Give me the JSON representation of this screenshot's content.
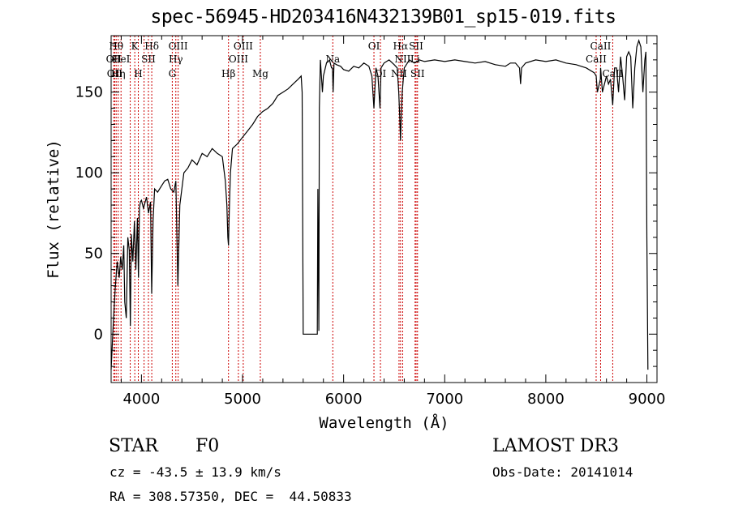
{
  "title": "spec-56945-HD203416N432139B01_sp15-019.fits",
  "info": {
    "class_label": "STAR",
    "subclass": "F0",
    "survey": "LAMOST DR3",
    "cz": "cz = -43.5 ± 13.9 km/s",
    "obs_date": "Obs-Date: 20141014",
    "radec": "RA = 308.57350, DEC =  44.50833"
  },
  "chart_data": {
    "type": "line",
    "title": "spec-56945-HD203416N432139B01_sp15-019.fits",
    "xlabel": "Wavelength (Å)",
    "ylabel": "Flux (relative)",
    "xlim": [
      3700,
      9100
    ],
    "ylim": [
      -30,
      185
    ],
    "xticks": [
      4000,
      5000,
      6000,
      7000,
      8000,
      9000
    ],
    "yticks": [
      0,
      50,
      100,
      150
    ],
    "grid": false,
    "line_color": "#000000",
    "marker_color": "#cc0000",
    "series": [
      {
        "x": [
          3700,
          3720,
          3740,
          3760,
          3780,
          3795,
          3810,
          3825,
          3835,
          3850,
          3865,
          3880,
          3890,
          3900,
          3915,
          3930,
          3945,
          3960,
          3970,
          3980,
          3990,
          4000,
          4020,
          4050,
          4070,
          4090,
          4101,
          4115,
          4130,
          4160,
          4200,
          4230,
          4260,
          4290,
          4320,
          4340,
          4360,
          4380,
          4420,
          4460,
          4500,
          4550,
          4600,
          4650,
          4700,
          4750,
          4800,
          4830,
          4845,
          4855,
          4861,
          4868,
          4880,
          4900,
          4950,
          5000,
          5050,
          5100,
          5150,
          5200,
          5250,
          5300,
          5350,
          5400,
          5450,
          5500,
          5550,
          5580,
          5590,
          5600,
          5650,
          5700,
          5730,
          5740,
          5745,
          5755,
          5760,
          5770,
          5790,
          5800,
          5830,
          5860,
          5880,
          5890,
          5896,
          5905,
          5930,
          5970,
          6000,
          6050,
          6100,
          6150,
          6200,
          6250,
          6280,
          6300,
          6320,
          6340,
          6360,
          6370,
          6400,
          6450,
          6500,
          6530,
          6545,
          6555,
          6563,
          6570,
          6580,
          6600,
          6650,
          6700,
          6750,
          6800,
          6900,
          7000,
          7100,
          7200,
          7300,
          7400,
          7500,
          7600,
          7650,
          7700,
          7740,
          7750,
          7760,
          7800,
          7900,
          8000,
          8100,
          8200,
          8300,
          8400,
          8480,
          8498,
          8510,
          8540,
          8542,
          8560,
          8600,
          8620,
          8640,
          8662,
          8680,
          8700,
          8720,
          8740,
          8760,
          8780,
          8800,
          8820,
          8840,
          8860,
          8880,
          8900,
          8920,
          8940,
          8960,
          8980,
          8990,
          9000,
          9010
        ],
        "y": [
          -22,
          5,
          28,
          45,
          35,
          48,
          40,
          55,
          20,
          10,
          60,
          52,
          5,
          62,
          45,
          70,
          40,
          72,
          35,
          78,
          82,
          83,
          78,
          85,
          75,
          82,
          25,
          70,
          90,
          88,
          92,
          95,
          96,
          90,
          88,
          95,
          30,
          80,
          100,
          103,
          108,
          105,
          112,
          110,
          115,
          112,
          110,
          95,
          80,
          60,
          55,
          75,
          100,
          115,
          118,
          122,
          126,
          130,
          135,
          138,
          140,
          143,
          148,
          150,
          152,
          155,
          158,
          160,
          150,
          0,
          0,
          0,
          0,
          0,
          90,
          2,
          140,
          170,
          150,
          160,
          168,
          170,
          165,
          165,
          150,
          168,
          167,
          166,
          164,
          163,
          166,
          165,
          168,
          166,
          160,
          140,
          165,
          160,
          140,
          165,
          168,
          170,
          167,
          165,
          150,
          135,
          120,
          135,
          150,
          165,
          170,
          168,
          170,
          169,
          170,
          169,
          170,
          169,
          168,
          169,
          167,
          166,
          168,
          168,
          165,
          155,
          165,
          168,
          170,
          169,
          170,
          168,
          167,
          165,
          162,
          160,
          150,
          158,
          165,
          150,
          160,
          155,
          158,
          142,
          165,
          165,
          150,
          172,
          160,
          145,
          172,
          175,
          172,
          140,
          165,
          178,
          182,
          178,
          150,
          170,
          175,
          60,
          -22
        ]
      }
    ],
    "line_markers": [
      {
        "x": 3726,
        "label": "OII",
        "row": 2
      },
      {
        "x": 3735,
        "label": "OII",
        "row": 3
      },
      {
        "x": 3750,
        "label": "Hθ",
        "row": 1
      },
      {
        "x": 3770,
        "label": "Hη",
        "row": 3
      },
      {
        "x": 3798,
        "label": "HeI",
        "row": 2
      },
      {
        "x": 3889,
        "label": "",
        "row": 0
      },
      {
        "x": 3934,
        "label": "K",
        "row": 1
      },
      {
        "x": 3969,
        "label": "H",
        "row": 3
      },
      {
        "x": 4026,
        "label": "",
        "row": 0
      },
      {
        "x": 4069,
        "label": "SII",
        "row": 2
      },
      {
        "x": 4102,
        "label": "Hδ",
        "row": 1
      },
      {
        "x": 4305,
        "label": "G",
        "row": 3
      },
      {
        "x": 4340,
        "label": "Hγ",
        "row": 2
      },
      {
        "x": 4363,
        "label": "OIII",
        "row": 1
      },
      {
        "x": 4861,
        "label": "Hβ",
        "row": 3
      },
      {
        "x": 4959,
        "label": "OIII",
        "row": 2
      },
      {
        "x": 5007,
        "label": "OIII",
        "row": 1
      },
      {
        "x": 5176,
        "label": "Mg",
        "row": 3
      },
      {
        "x": 5893,
        "label": "Na",
        "row": 2
      },
      {
        "x": 6300,
        "label": "OI",
        "row": 1
      },
      {
        "x": 6364,
        "label": "OI",
        "row": 3
      },
      {
        "x": 6548,
        "label": "NII",
        "row": 3
      },
      {
        "x": 6563,
        "label": "Hα",
        "row": 1
      },
      {
        "x": 6584,
        "label": "NII",
        "row": 2
      },
      {
        "x": 6707,
        "label": "Li",
        "row": 2
      },
      {
        "x": 6717,
        "label": "SII",
        "row": 1
      },
      {
        "x": 6731,
        "label": "SII",
        "row": 3
      },
      {
        "x": 8498,
        "label": "CaII",
        "row": 2
      },
      {
        "x": 8542,
        "label": "CaII",
        "row": 1
      },
      {
        "x": 8662,
        "label": "CaII",
        "row": 3
      }
    ]
  }
}
